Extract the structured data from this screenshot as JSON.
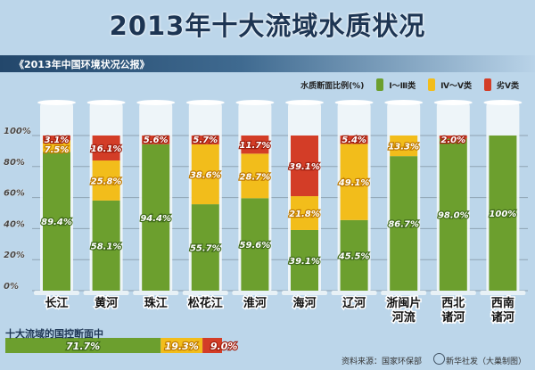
{
  "title": "2013年十大流域水质状况",
  "subtitle": "《2013年中国环境状况公报》",
  "legend": {
    "label": "水质断面比例(%)",
    "items": [
      "Ⅰ～Ⅲ类",
      "Ⅳ～Ⅴ类",
      "劣Ⅴ类"
    ]
  },
  "colors": {
    "good": "#6c9f2e",
    "mid": "#f2bd1b",
    "bad": "#d33d27"
  },
  "chart_data": {
    "type": "bar",
    "stacked": true,
    "categories": [
      "长江",
      "黄河",
      "珠江",
      "松花江",
      "淮河",
      "海河",
      "辽河",
      "浙闽片河流",
      "西北诸河",
      "西南诸河"
    ],
    "category_lines": [
      [
        "长江"
      ],
      [
        "黄河"
      ],
      [
        "珠江"
      ],
      [
        "松花江"
      ],
      [
        "淮河"
      ],
      [
        "海河"
      ],
      [
        "辽河"
      ],
      [
        "浙闽片",
        "河流"
      ],
      [
        "西北",
        "诸河"
      ],
      [
        "西南",
        "诸河"
      ]
    ],
    "series": [
      {
        "name": "Ⅰ～Ⅲ类",
        "values": [
          89.4,
          58.1,
          94.4,
          55.7,
          59.6,
          39.1,
          45.5,
          86.7,
          98.0,
          100
        ]
      },
      {
        "name": "Ⅳ～Ⅴ类",
        "values": [
          7.5,
          25.8,
          0,
          38.6,
          28.7,
          21.8,
          49.1,
          13.3,
          0,
          0
        ]
      },
      {
        "name": "劣Ⅴ类",
        "values": [
          3.1,
          16.1,
          5.6,
          5.7,
          11.7,
          39.1,
          5.4,
          0,
          2.0,
          0
        ]
      }
    ],
    "data_labels": [
      [
        "89.4%",
        "58.1%",
        "94.4%",
        "55.7%",
        "59.6%",
        "39.1%",
        "45.5%",
        "86.7%",
        "98.0%",
        "100%"
      ],
      [
        "7.5%",
        "25.8%",
        "",
        "38.6%",
        "28.7%",
        "21.8%",
        "49.1%",
        "13.3%",
        "",
        ""
      ],
      [
        "3.1%",
        "16.1%",
        "5.6%",
        "5.7%",
        "11.7%",
        "39.1%",
        "5.4%",
        "",
        "2.0%",
        ""
      ]
    ],
    "ylim": [
      0,
      100
    ],
    "yticks": [
      "0%",
      "20%",
      "40%",
      "60%",
      "80%",
      "100%"
    ],
    "grid": true,
    "legend_position": "top-right"
  },
  "total": {
    "label": "十大流域的国控断面中",
    "values": [
      71.7,
      19.3,
      9.0
    ],
    "labels": [
      "71.7%",
      "19.3%",
      "9.0%"
    ]
  },
  "source": "资料来源：国家环保部",
  "credit": "新华社发（大巢制图）"
}
